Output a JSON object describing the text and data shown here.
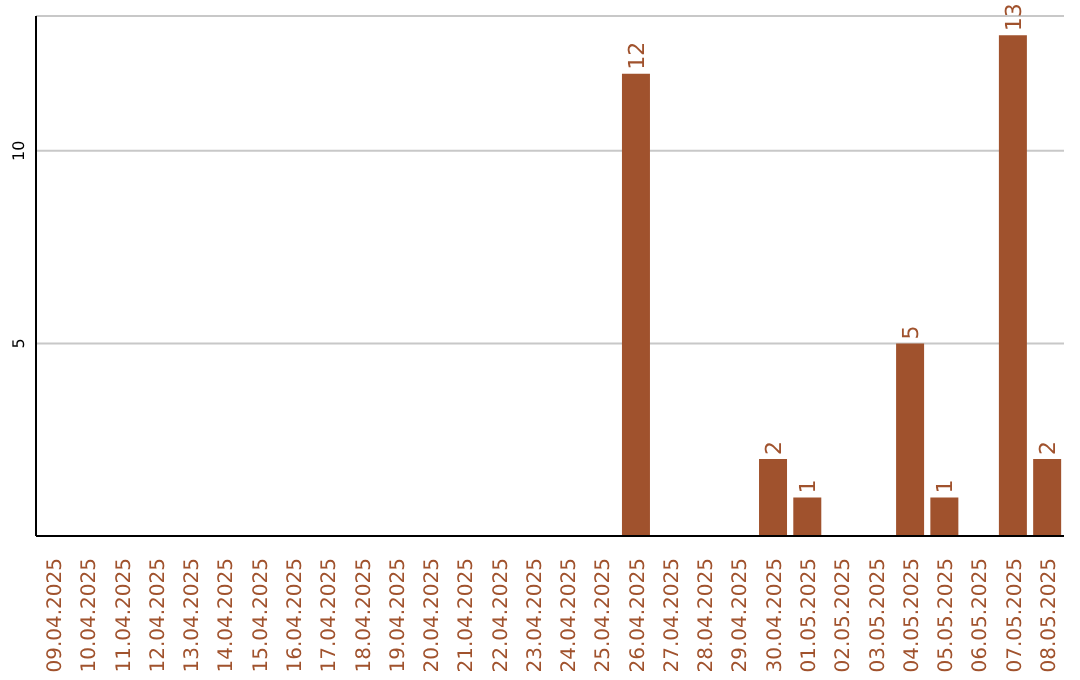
{
  "chart_data": {
    "type": "bar",
    "categories": [
      "09.04.2025",
      "10.04.2025",
      "11.04.2025",
      "12.04.2025",
      "13.04.2025",
      "14.04.2025",
      "15.04.2025",
      "16.04.2025",
      "17.04.2025",
      "18.04.2025",
      "19.04.2025",
      "20.04.2025",
      "21.04.2025",
      "22.04.2025",
      "23.04.2025",
      "24.04.2025",
      "25.04.2025",
      "26.04.2025",
      "27.04.2025",
      "28.04.2025",
      "29.04.2025",
      "30.04.2025",
      "01.05.2025",
      "02.05.2025",
      "03.05.2025",
      "04.05.2025",
      "05.05.2025",
      "06.05.2025",
      "07.05.2025",
      "08.05.2025"
    ],
    "values": [
      0,
      0,
      0,
      0,
      0,
      0,
      0,
      0,
      0,
      0,
      0,
      0,
      0,
      0,
      0,
      0,
      0,
      12,
      0,
      0,
      0,
      2,
      1,
      0,
      0,
      5,
      1,
      0,
      13,
      2
    ],
    "value_labels": [
      null,
      null,
      null,
      null,
      null,
      null,
      null,
      null,
      null,
      null,
      null,
      null,
      null,
      null,
      null,
      null,
      null,
      "12",
      null,
      null,
      null,
      "2",
      "1",
      null,
      null,
      "5",
      "1",
      null,
      "13",
      "2"
    ],
    "color": "#a0522d",
    "ylim": [
      0,
      13.5
    ],
    "yticks": [
      5,
      10
    ],
    "grid": "y"
  }
}
